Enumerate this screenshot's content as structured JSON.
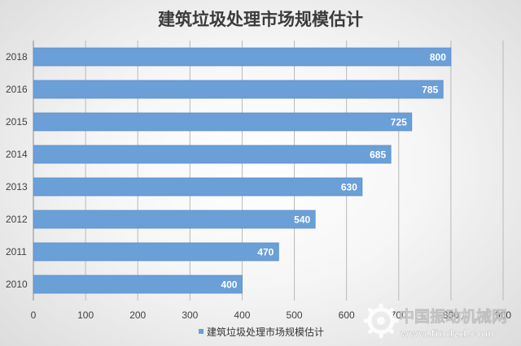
{
  "chart_data": {
    "type": "bar",
    "orientation": "horizontal",
    "title": "建筑垃圾处理市场规模估计",
    "categories": [
      "2018",
      "2016",
      "2015",
      "2014",
      "2013",
      "2012",
      "2011",
      "2010"
    ],
    "series": [
      {
        "name": "建筑垃圾处理市场规模估计",
        "values": [
          800,
          785,
          725,
          685,
          630,
          540,
          470,
          400
        ]
      }
    ],
    "x_ticks": [
      "0",
      "100",
      "200",
      "300",
      "400",
      "500",
      "600",
      "700",
      "800",
      "900"
    ],
    "xlim": [
      0,
      900
    ],
    "grid": "vertical",
    "legend_position": "bottom",
    "data_labels": true,
    "colors": {
      "bar": "#6a9fd8",
      "bar_edge": "#5b8fc8"
    }
  },
  "watermark": {
    "brand": "中国振动机械网",
    "url": "www.findzd.com"
  }
}
